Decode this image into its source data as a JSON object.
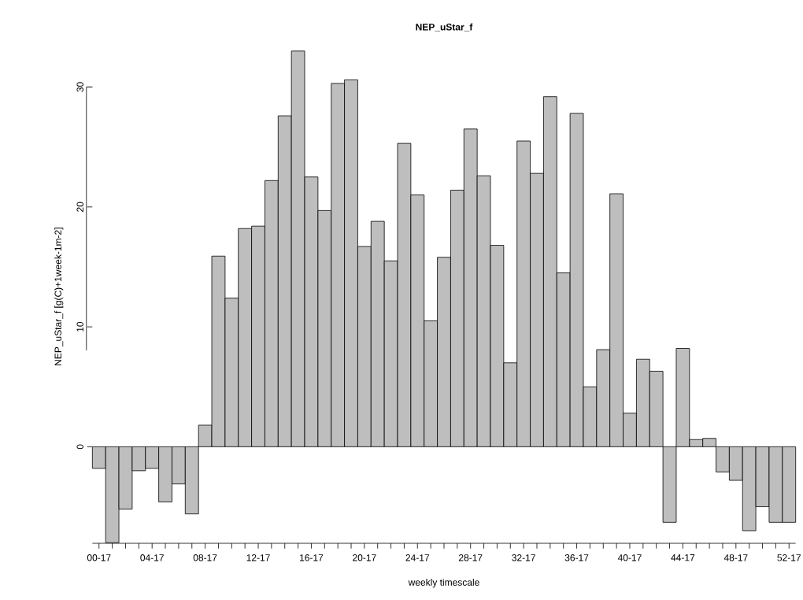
{
  "chart_data": {
    "type": "bar",
    "title": "NEP_uStar_f",
    "xlabel": "weekly timescale",
    "ylabel": "NEP_uStar_f [g(C)+1week-1m-2]",
    "categories": [
      "00-17",
      null,
      null,
      null,
      "04-17",
      null,
      null,
      null,
      "08-17",
      null,
      null,
      null,
      "12-17",
      null,
      null,
      null,
      "16-17",
      null,
      null,
      null,
      "20-17",
      null,
      null,
      null,
      "24-17",
      null,
      null,
      null,
      "28-17",
      null,
      null,
      null,
      "32-17",
      null,
      null,
      null,
      "36-17",
      null,
      null,
      null,
      "40-17",
      null,
      null,
      null,
      "44-17",
      null,
      null,
      null,
      "48-17",
      null,
      null,
      null,
      "52-17"
    ],
    "values": [
      -1.8,
      -8.0,
      -5.2,
      -2.0,
      -1.8,
      -4.6,
      -3.1,
      -5.6,
      1.8,
      15.9,
      12.4,
      18.2,
      18.4,
      22.2,
      27.6,
      33.0,
      22.5,
      19.7,
      30.3,
      30.6,
      16.7,
      18.8,
      15.5,
      25.3,
      21.0,
      10.5,
      15.8,
      21.4,
      26.5,
      22.6,
      16.8,
      7.0,
      25.5,
      22.8,
      29.2,
      14.5,
      27.8,
      5.0,
      8.1,
      21.1,
      2.8,
      7.3,
      6.3,
      -6.3,
      8.2,
      0.6,
      0.7,
      -2.1,
      -2.8,
      -7.0,
      -5.0,
      -6.3,
      -6.3
    ],
    "color": "#bebebe",
    "ylim": [
      -8.05,
      33.1
    ],
    "yticks": [
      0,
      10,
      20,
      30
    ]
  }
}
